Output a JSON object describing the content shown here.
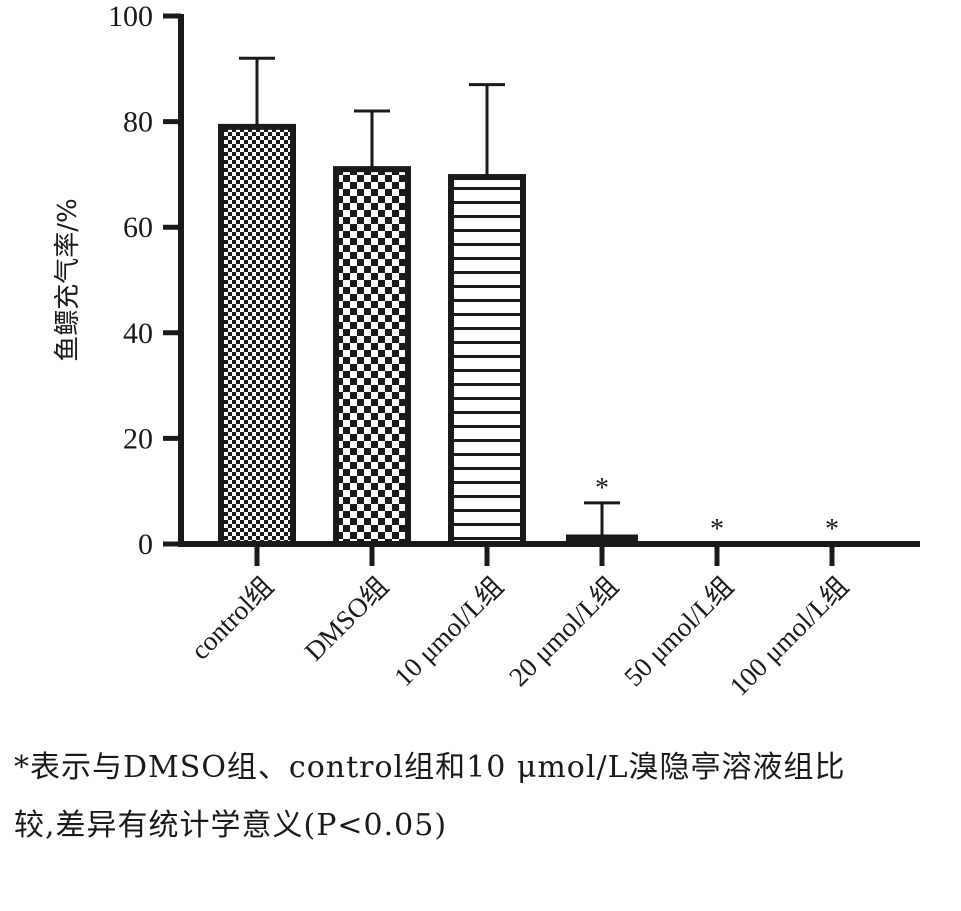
{
  "chart_data": {
    "type": "bar",
    "ylabel": "鱼鳔充气率/%",
    "ylim": [
      0,
      100
    ],
    "yticks": [
      0,
      20,
      40,
      60,
      80,
      100
    ],
    "categories": [
      "control组",
      "DMSO组",
      "10 μmol/L组",
      "20 μmol/L组",
      "50 μmol/L组",
      "100 μmol/L组"
    ],
    "values": [
      79,
      71,
      69.5,
      1.8,
      0,
      0
    ],
    "error_upper": [
      92,
      82,
      87,
      7.8,
      null,
      null
    ],
    "significance": [
      "",
      "",
      "",
      "*",
      "*",
      "*"
    ],
    "fill_patterns": [
      "fine-checker",
      "coarse-checker",
      "horizontal-stripes",
      "solid",
      "solid",
      "solid"
    ],
    "grid": false,
    "legend": "none"
  },
  "caption": {
    "line1": "*表示与DMSO组、control组和10 μmol/L溴隐亭溶液组比",
    "line2": "较,差异有统计学意义(P<0.05)"
  }
}
